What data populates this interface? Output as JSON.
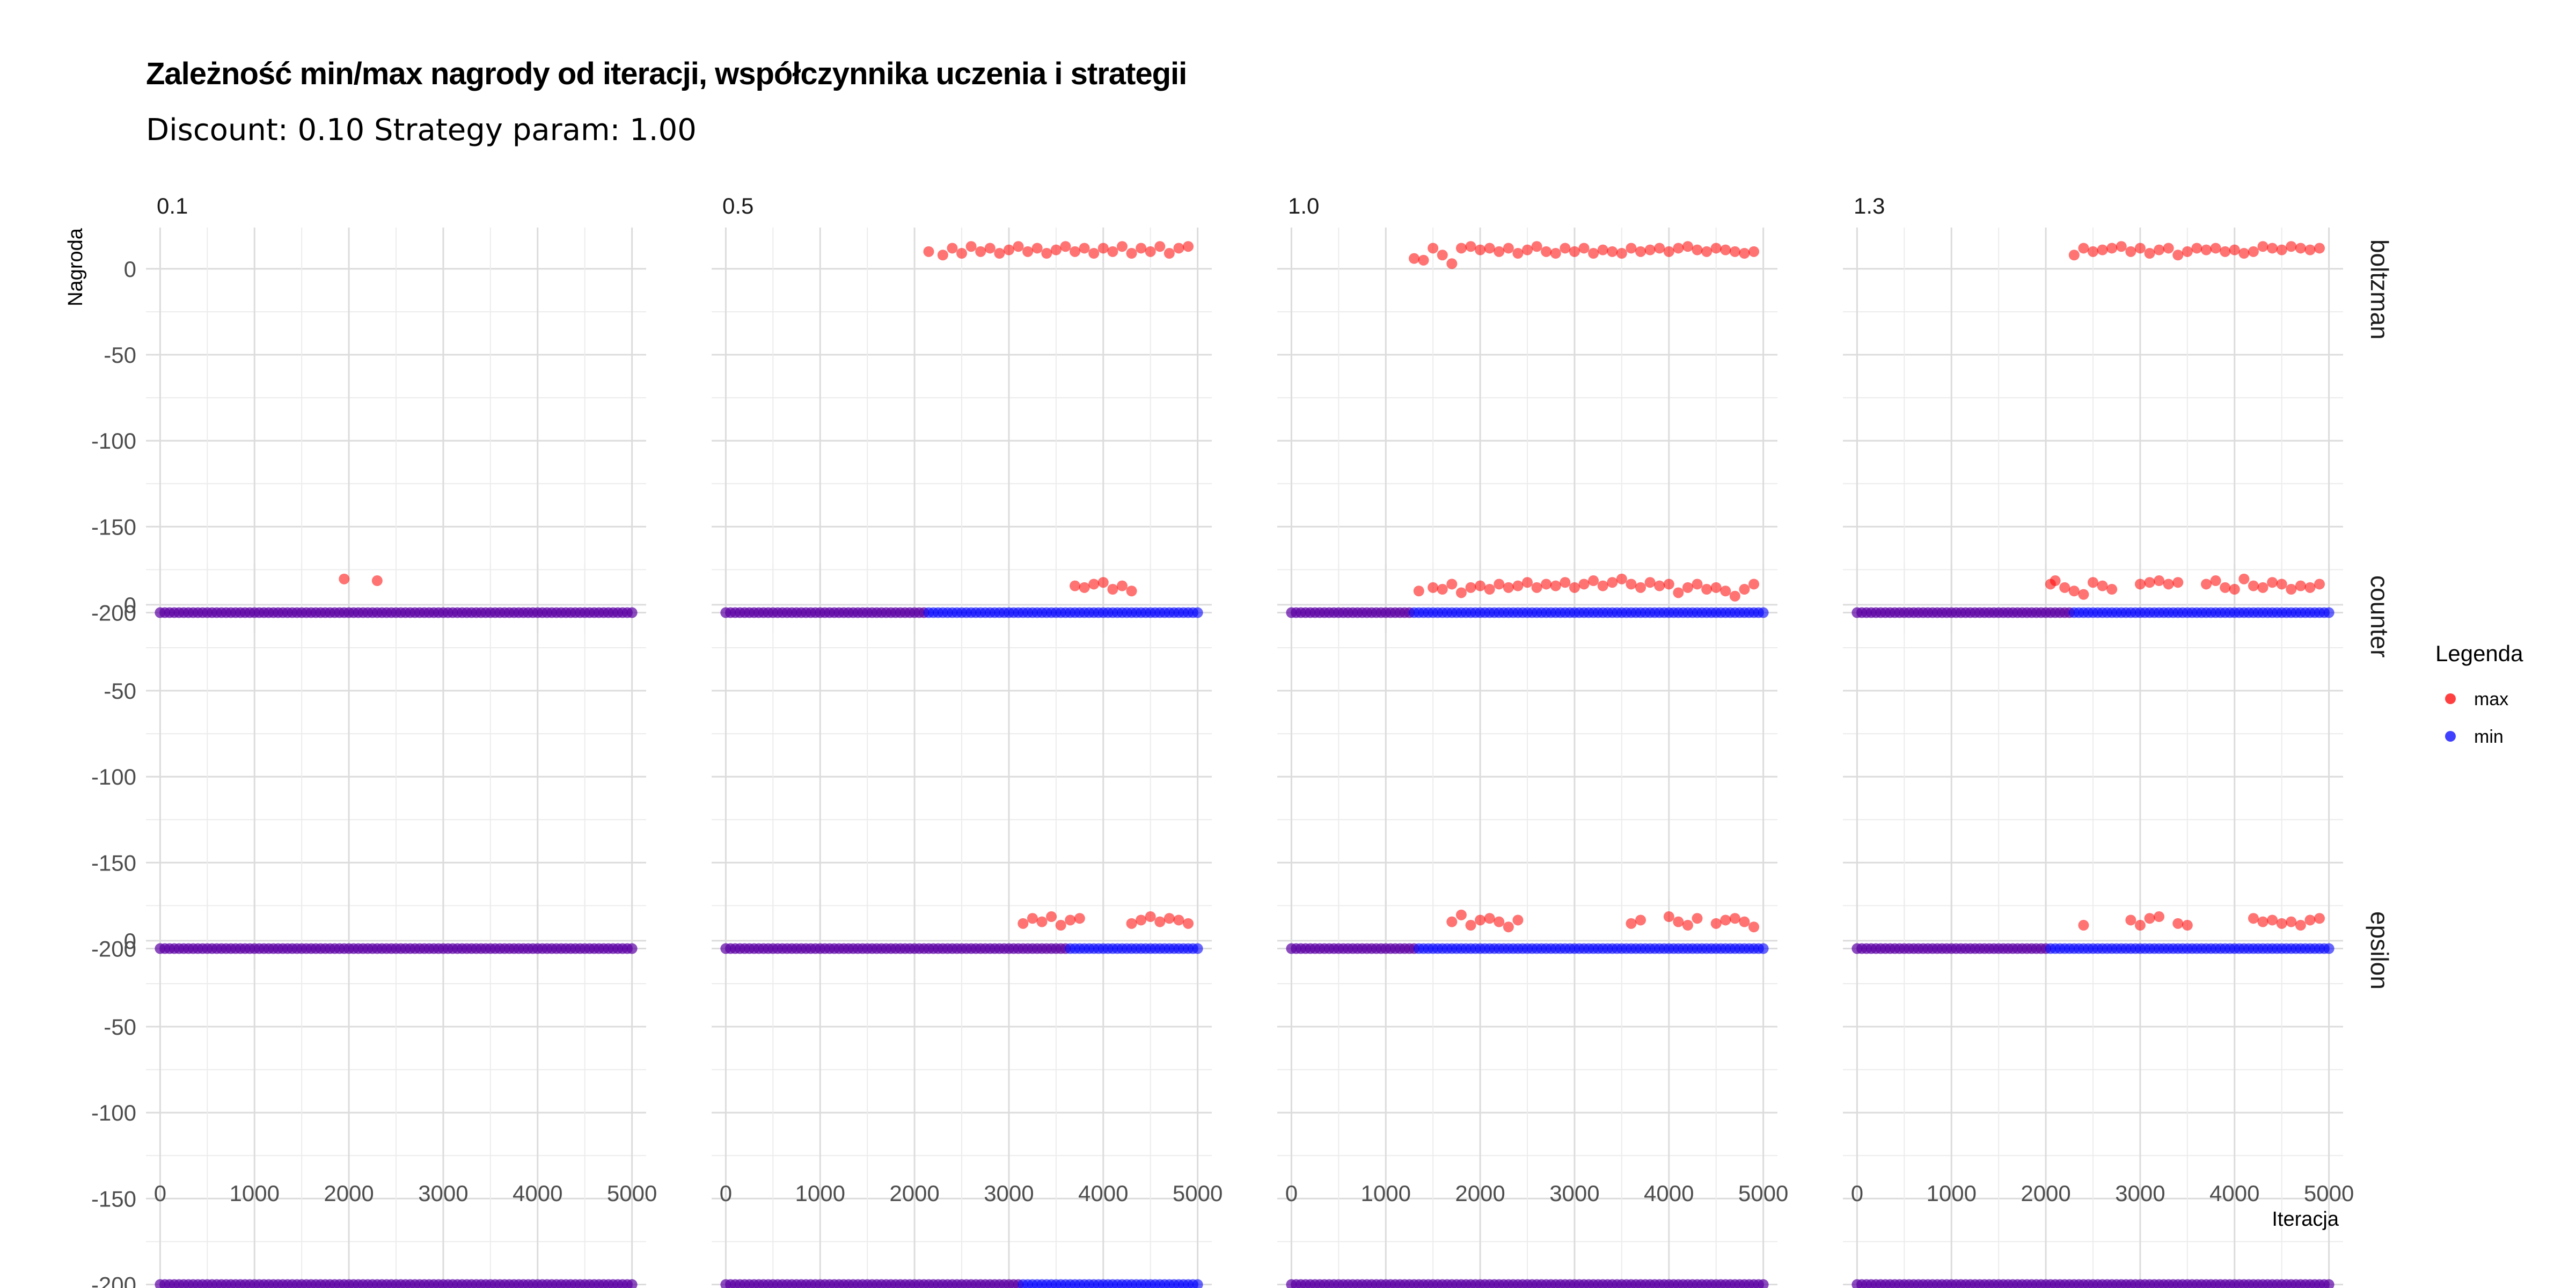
{
  "title": "Zależność min/max nagrody od iteracji, współczynnika uczenia i strategii",
  "subtitle": "Discount: 0.10 Strategy param: 1.00",
  "chart_data": {
    "type": "scatter",
    "title": "Zależność min/max nagrody od iteracji, współczynnika uczenia i strategii",
    "subtitle": "Discount: 0.10 Strategy param: 1.00",
    "xlabel": "Iteracja",
    "ylabel": "Nagroda",
    "xlim": [
      -150,
      5150
    ],
    "ylim": [
      -212,
      24
    ],
    "xticks": [
      0,
      1000,
      2000,
      3000,
      4000,
      5000
    ],
    "yticks": [
      0,
      -50,
      -100,
      -150,
      -200
    ],
    "grid": true,
    "legend": {
      "title": "Legenda",
      "position": "right",
      "entries": [
        {
          "label": "max",
          "color": "#ff0000"
        },
        {
          "label": "min",
          "color": "#0000ff"
        }
      ]
    },
    "facet_columns": [
      "0.1",
      "0.5",
      "1.0",
      "1.3"
    ],
    "facet_rows": [
      "boltzman",
      "counter",
      "epsilon"
    ],
    "min_value": -200,
    "x_step": 50,
    "panels": [
      {
        "col": "0.1",
        "row": "boltzman",
        "max_start": null,
        "max_points": []
      },
      {
        "col": "0.5",
        "row": "boltzman",
        "max_start": 2150,
        "max_points": [
          [
            2150,
            10
          ],
          [
            2300,
            8
          ],
          [
            2400,
            12
          ],
          [
            2500,
            9
          ],
          [
            2600,
            13
          ],
          [
            2700,
            10
          ],
          [
            2800,
            12
          ],
          [
            2900,
            9
          ],
          [
            3000,
            11
          ],
          [
            3100,
            13
          ],
          [
            3200,
            10
          ],
          [
            3300,
            12
          ],
          [
            3400,
            9
          ],
          [
            3500,
            11
          ],
          [
            3600,
            13
          ],
          [
            3700,
            10
          ],
          [
            3800,
            12
          ],
          [
            3900,
            9
          ],
          [
            4000,
            12
          ],
          [
            4100,
            10
          ],
          [
            4200,
            13
          ],
          [
            4300,
            9
          ],
          [
            4400,
            12
          ],
          [
            4500,
            10
          ],
          [
            4600,
            13
          ],
          [
            4700,
            9
          ],
          [
            4800,
            12
          ],
          [
            4900,
            13
          ]
        ]
      },
      {
        "col": "1.0",
        "row": "boltzman",
        "max_start": 1300,
        "max_points": [
          [
            1300,
            6
          ],
          [
            1400,
            5
          ],
          [
            1500,
            12
          ],
          [
            1600,
            8
          ],
          [
            1700,
            3
          ],
          [
            1800,
            12
          ],
          [
            1900,
            13
          ],
          [
            2000,
            11
          ],
          [
            2100,
            12
          ],
          [
            2200,
            10
          ],
          [
            2300,
            12
          ],
          [
            2400,
            9
          ],
          [
            2500,
            11
          ],
          [
            2600,
            13
          ],
          [
            2700,
            10
          ],
          [
            2800,
            9
          ],
          [
            2900,
            12
          ],
          [
            3000,
            10
          ],
          [
            3100,
            12
          ],
          [
            3200,
            9
          ],
          [
            3300,
            11
          ],
          [
            3400,
            10
          ],
          [
            3500,
            9
          ],
          [
            3600,
            12
          ],
          [
            3700,
            10
          ],
          [
            3800,
            11
          ],
          [
            3900,
            12
          ],
          [
            4000,
            10
          ],
          [
            4100,
            12
          ],
          [
            4200,
            13
          ],
          [
            4300,
            11
          ],
          [
            4400,
            10
          ],
          [
            4500,
            12
          ],
          [
            4600,
            11
          ],
          [
            4700,
            10
          ],
          [
            4800,
            9
          ],
          [
            4900,
            10
          ]
        ]
      },
      {
        "col": "1.3",
        "row": "boltzman",
        "max_start": 2300,
        "max_points": [
          [
            2300,
            8
          ],
          [
            2400,
            12
          ],
          [
            2500,
            10
          ],
          [
            2600,
            11
          ],
          [
            2700,
            12
          ],
          [
            2800,
            13
          ],
          [
            2900,
            10
          ],
          [
            3000,
            12
          ],
          [
            3100,
            9
          ],
          [
            3200,
            11
          ],
          [
            3300,
            12
          ],
          [
            3400,
            8
          ],
          [
            3500,
            10
          ],
          [
            3600,
            12
          ],
          [
            3700,
            11
          ],
          [
            3800,
            12
          ],
          [
            3900,
            10
          ],
          [
            4000,
            11
          ],
          [
            4100,
            9
          ],
          [
            4200,
            10
          ],
          [
            4300,
            13
          ],
          [
            4400,
            12
          ],
          [
            4500,
            11
          ],
          [
            4600,
            13
          ],
          [
            4700,
            12
          ],
          [
            4800,
            11
          ],
          [
            4900,
            12
          ]
        ]
      },
      {
        "col": "0.1",
        "row": "counter",
        "max_start": null,
        "max_points": [
          [
            1950,
            15
          ],
          [
            2300,
            14
          ]
        ]
      },
      {
        "col": "0.5",
        "row": "counter",
        "max_start": 3650,
        "max_points": [
          [
            3700,
            11
          ],
          [
            3800,
            10
          ],
          [
            3900,
            12
          ],
          [
            4000,
            13
          ],
          [
            4100,
            9
          ],
          [
            4200,
            11
          ],
          [
            4300,
            8
          ]
        ]
      },
      {
        "col": "1.0",
        "row": "counter",
        "max_start": 1350,
        "max_points": [
          [
            1350,
            8
          ],
          [
            1500,
            10
          ],
          [
            1600,
            9
          ],
          [
            1700,
            12
          ],
          [
            1800,
            7
          ],
          [
            1900,
            10
          ],
          [
            2000,
            11
          ],
          [
            2100,
            9
          ],
          [
            2200,
            12
          ],
          [
            2300,
            10
          ],
          [
            2400,
            11
          ],
          [
            2500,
            13
          ],
          [
            2600,
            10
          ],
          [
            2700,
            12
          ],
          [
            2800,
            11
          ],
          [
            2900,
            13
          ],
          [
            3000,
            10
          ],
          [
            3100,
            12
          ],
          [
            3200,
            14
          ],
          [
            3300,
            11
          ],
          [
            3400,
            13
          ],
          [
            3500,
            15
          ],
          [
            3600,
            12
          ],
          [
            3700,
            10
          ],
          [
            3800,
            13
          ],
          [
            3900,
            11
          ],
          [
            4000,
            12
          ],
          [
            4100,
            7
          ],
          [
            4200,
            10
          ],
          [
            4300,
            12
          ],
          [
            4400,
            9
          ],
          [
            4500,
            10
          ],
          [
            4600,
            8
          ],
          [
            4700,
            5
          ],
          [
            4800,
            9
          ],
          [
            4900,
            12
          ]
        ]
      },
      {
        "col": "1.3",
        "row": "counter",
        "max_start": 2050,
        "max_points": [
          [
            2050,
            12
          ],
          [
            2100,
            14
          ],
          [
            2200,
            10
          ],
          [
            2300,
            8
          ],
          [
            2400,
            6
          ],
          [
            2500,
            13
          ],
          [
            2600,
            11
          ],
          [
            2700,
            9
          ],
          [
            3000,
            12
          ],
          [
            3100,
            13
          ],
          [
            3200,
            14
          ],
          [
            3300,
            12
          ],
          [
            3400,
            13
          ],
          [
            3700,
            12
          ],
          [
            3800,
            14
          ],
          [
            3900,
            10
          ],
          [
            4000,
            9
          ],
          [
            4100,
            15
          ],
          [
            4200,
            11
          ],
          [
            4300,
            10
          ],
          [
            4400,
            13
          ],
          [
            4500,
            12
          ],
          [
            4600,
            9
          ],
          [
            4700,
            11
          ],
          [
            4800,
            10
          ],
          [
            4900,
            12
          ]
        ]
      },
      {
        "col": "0.1",
        "row": "epsilon",
        "max_start": null,
        "max_points": []
      },
      {
        "col": "0.5",
        "row": "epsilon",
        "max_start": 3150,
        "max_points": [
          [
            3150,
            10
          ],
          [
            3250,
            13
          ],
          [
            3350,
            11
          ],
          [
            3450,
            14
          ],
          [
            3550,
            9
          ],
          [
            3650,
            12
          ],
          [
            3750,
            13
          ],
          [
            4300,
            10
          ],
          [
            4400,
            12
          ],
          [
            4500,
            14
          ],
          [
            4600,
            11
          ],
          [
            4700,
            13
          ],
          [
            4800,
            12
          ],
          [
            4900,
            10
          ]
        ]
      },
      {
        "col": "1.0",
        "row": "epsilon",
        "max_start": null,
        "max_points": [
          [
            1700,
            11
          ],
          [
            1800,
            15
          ],
          [
            1900,
            9
          ],
          [
            2000,
            12
          ],
          [
            2100,
            13
          ],
          [
            2200,
            11
          ],
          [
            2300,
            8
          ],
          [
            2400,
            12
          ],
          [
            3600,
            10
          ],
          [
            3700,
            12
          ],
          [
            4000,
            14
          ],
          [
            4100,
            11
          ],
          [
            4200,
            9
          ],
          [
            4300,
            13
          ],
          [
            4500,
            10
          ],
          [
            4600,
            12
          ],
          [
            4700,
            13
          ],
          [
            4800,
            11
          ],
          [
            4900,
            8
          ]
        ]
      },
      {
        "col": "1.3",
        "row": "epsilon",
        "max_start": null,
        "max_points": [
          [
            2400,
            9
          ],
          [
            2900,
            12
          ],
          [
            3000,
            9
          ],
          [
            3100,
            13
          ],
          [
            3200,
            14
          ],
          [
            3400,
            10
          ],
          [
            3500,
            9
          ],
          [
            4200,
            13
          ],
          [
            4300,
            11
          ],
          [
            4400,
            12
          ],
          [
            4500,
            10
          ],
          [
            4600,
            11
          ],
          [
            4700,
            9
          ],
          [
            4800,
            12
          ],
          [
            4900,
            13
          ]
        ]
      }
    ]
  }
}
